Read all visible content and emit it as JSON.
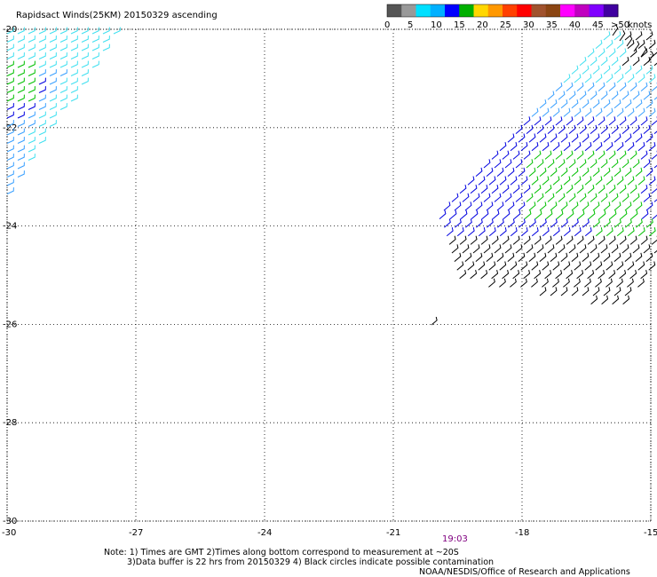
{
  "title": "Rapidsact Winds(25KM) 20150329 ascending",
  "legend": {
    "unit": "knots",
    "ticks": [
      "0",
      "5",
      "10",
      "15",
      "20",
      "25",
      "30",
      "35",
      "40",
      "45",
      ">50"
    ],
    "colors": [
      "#555555",
      "#999999",
      "#00e0ff",
      "#00b0ff",
      "#0000ff",
      "#00b000",
      "#ffd700",
      "#ff9800",
      "#ff4000",
      "#ff0000",
      "#a0522d",
      "#8b4513",
      "#ff00ff",
      "#c000c0",
      "#8000ff",
      "#4000a0"
    ]
  },
  "axes": {
    "x_ticks": [
      "-30",
      "-27",
      "-24",
      "-21",
      "-18",
      "-15"
    ],
    "y_ticks": [
      "-20",
      "-22",
      "-24",
      "-26",
      "-28",
      "-30"
    ],
    "x_range": [
      -30,
      -15
    ],
    "y_range": [
      -30,
      -20
    ]
  },
  "time_label": "19:03",
  "notes": {
    "line1": "Note: 1) Times are GMT 2)Times along bottom correspond to measurement at ~20S",
    "line2": "3)Data buffer is 22 hrs from 20150329 4) Black circles indicate possible contamination",
    "line3": "NOAA/NESDIS/Office of Research and Applications"
  },
  "wind_colors": {
    "cyan": "#40e0f0",
    "light_blue": "#3aa0ff",
    "blue": "#0000e0",
    "green": "#00c000",
    "black": "#000000"
  }
}
